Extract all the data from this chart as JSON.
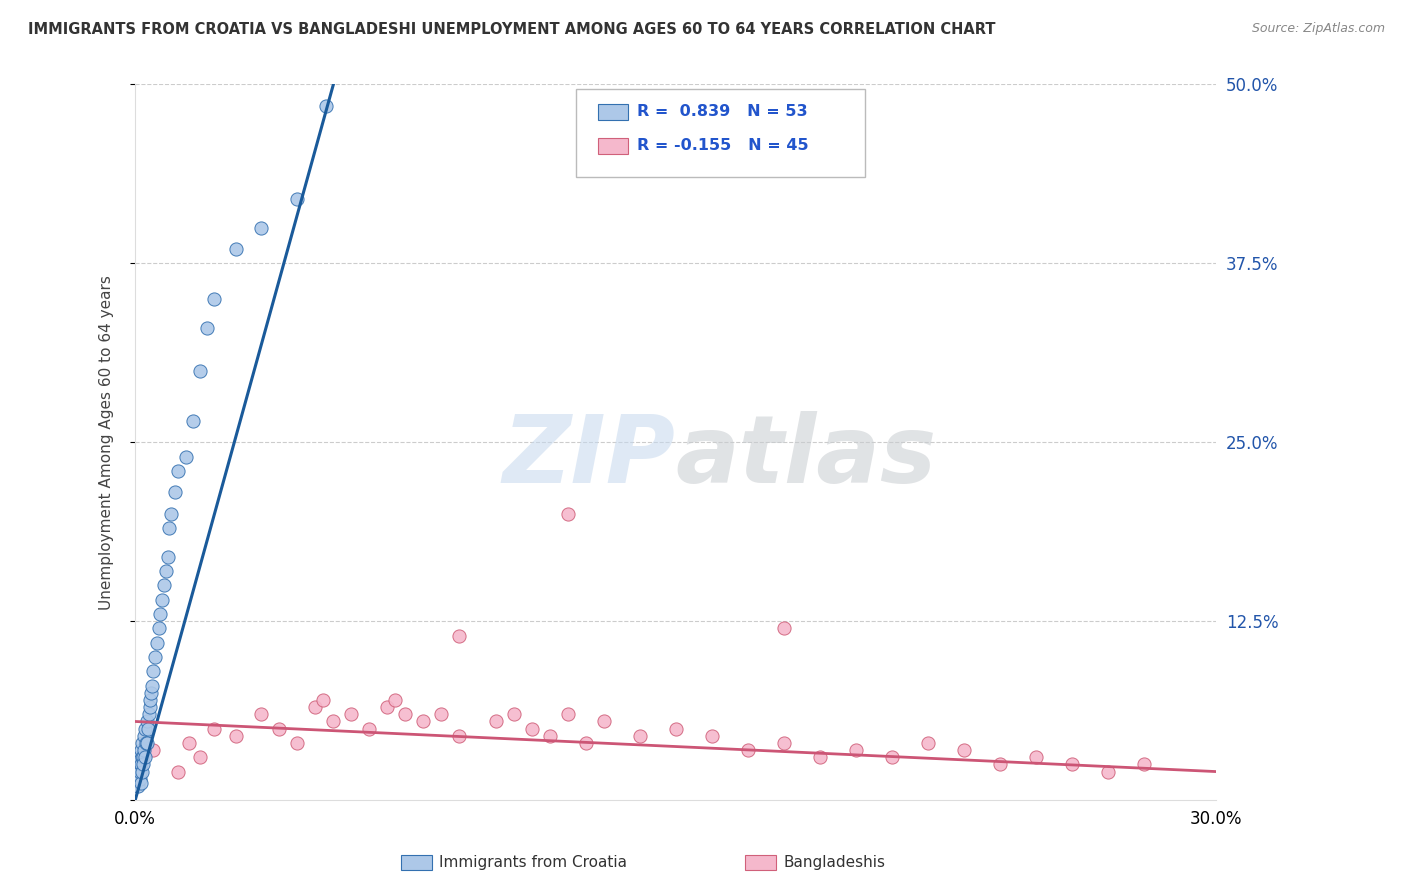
{
  "title": "IMMIGRANTS FROM CROATIA VS BANGLADESHI UNEMPLOYMENT AMONG AGES 60 TO 64 YEARS CORRELATION CHART",
  "source": "Source: ZipAtlas.com",
  "ylabel": "Unemployment Among Ages 60 to 64 years",
  "xlim": [
    0.0,
    30.0
  ],
  "ylim": [
    0.0,
    50.0
  ],
  "yticks": [
    0.0,
    12.5,
    25.0,
    37.5,
    50.0
  ],
  "ytick_labels": [
    "",
    "12.5%",
    "25.0%",
    "37.5%",
    "50.0%"
  ],
  "legend_r1": "0.839",
  "legend_n1": "53",
  "legend_r2": "-0.155",
  "legend_n2": "45",
  "blue_color": "#adc8e8",
  "blue_edge_color": "#3370b0",
  "pink_color": "#f5b8cc",
  "pink_edge_color": "#d0607a",
  "blue_line_color": "#1a5a9a",
  "pink_line_color": "#cc5575",
  "watermark": "ZIPatlas",
  "blue_scatter_x": [
    0.05,
    0.06,
    0.07,
    0.08,
    0.09,
    0.1,
    0.11,
    0.12,
    0.13,
    0.14,
    0.15,
    0.16,
    0.17,
    0.18,
    0.19,
    0.2,
    0.22,
    0.23,
    0.24,
    0.25,
    0.27,
    0.28,
    0.3,
    0.32,
    0.33,
    0.35,
    0.37,
    0.4,
    0.42,
    0.45,
    0.48,
    0.5,
    0.55,
    0.6,
    0.65,
    0.7,
    0.75,
    0.8,
    0.85,
    0.9,
    0.95,
    1.0,
    1.1,
    1.2,
    1.4,
    1.6,
    1.8,
    2.0,
    2.2,
    2.8,
    3.5,
    4.5,
    5.3
  ],
  "blue_scatter_y": [
    1.5,
    2.0,
    1.0,
    2.5,
    1.8,
    3.0,
    2.2,
    1.5,
    2.8,
    2.0,
    3.5,
    2.5,
    1.2,
    3.0,
    2.0,
    4.0,
    3.0,
    2.5,
    4.5,
    3.5,
    5.0,
    3.0,
    4.0,
    5.5,
    4.0,
    5.0,
    6.0,
    6.5,
    7.0,
    7.5,
    8.0,
    9.0,
    10.0,
    11.0,
    12.0,
    13.0,
    14.0,
    15.0,
    16.0,
    17.0,
    19.0,
    20.0,
    21.5,
    23.0,
    24.0,
    26.5,
    30.0,
    33.0,
    35.0,
    38.5,
    40.0,
    42.0,
    48.5
  ],
  "pink_scatter_x": [
    0.5,
    1.2,
    1.5,
    1.8,
    2.2,
    2.8,
    3.5,
    4.0,
    4.5,
    5.0,
    5.2,
    5.5,
    6.0,
    6.5,
    7.0,
    7.2,
    7.5,
    8.0,
    8.5,
    9.0,
    10.0,
    10.5,
    11.0,
    11.5,
    12.0,
    12.5,
    13.0,
    14.0,
    15.0,
    16.0,
    17.0,
    18.0,
    19.0,
    20.0,
    21.0,
    22.0,
    23.0,
    24.0,
    25.0,
    26.0,
    27.0,
    28.0,
    9.0,
    12.0,
    18.0
  ],
  "pink_scatter_y": [
    3.5,
    2.0,
    4.0,
    3.0,
    5.0,
    4.5,
    6.0,
    5.0,
    4.0,
    6.5,
    7.0,
    5.5,
    6.0,
    5.0,
    6.5,
    7.0,
    6.0,
    5.5,
    6.0,
    4.5,
    5.5,
    6.0,
    5.0,
    4.5,
    6.0,
    4.0,
    5.5,
    4.5,
    5.0,
    4.5,
    3.5,
    4.0,
    3.0,
    3.5,
    3.0,
    4.0,
    3.5,
    2.5,
    3.0,
    2.5,
    2.0,
    2.5,
    11.5,
    20.0,
    12.0
  ],
  "blue_trend_x": [
    0.0,
    5.5
  ],
  "blue_trend_y": [
    0.0,
    50.0
  ],
  "pink_trend_x": [
    0.0,
    30.0
  ],
  "pink_trend_y": [
    5.5,
    2.0
  ]
}
